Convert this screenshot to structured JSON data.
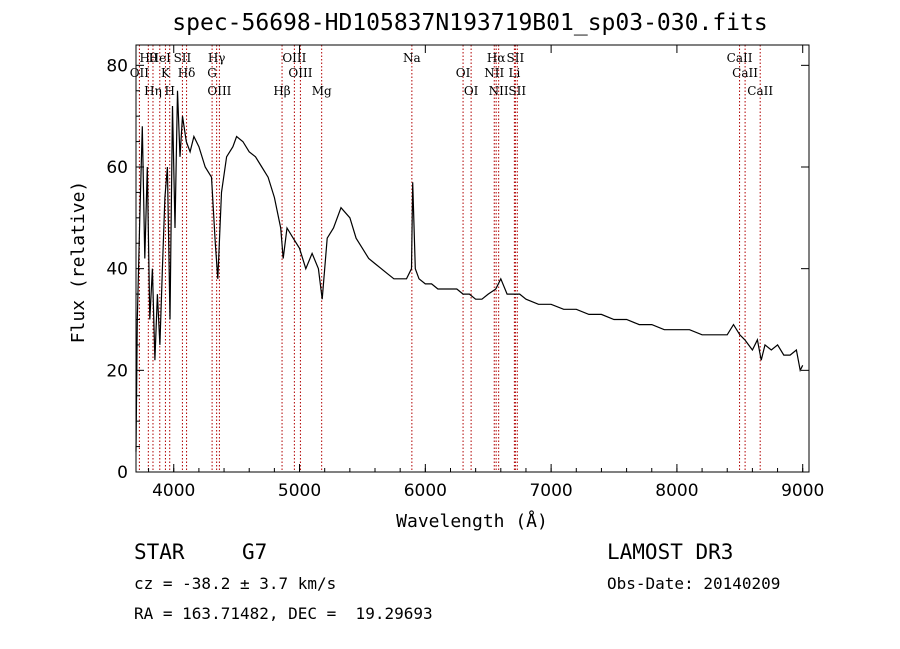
{
  "info": {
    "object_class": "STAR",
    "spectral_type": "G7",
    "survey": "LAMOST DR3",
    "redshift": "cz = -38.2 ± 3.7 km/s",
    "obs_date": "Obs-Date: 20140209",
    "coords": "RA = 163.71482, DEC =  19.29693"
  },
  "colors": {
    "spectrum": "#000000",
    "line_marker": "#b00000",
    "frame": "#000000"
  },
  "chart_data": {
    "type": "line",
    "title": "spec-56698-HD105837N193719B01_sp03-030.fits",
    "xlabel": "Wavelength (Å)",
    "ylabel": "Flux (relative)",
    "xlim": [
      3700,
      9050
    ],
    "ylim": [
      0,
      84
    ],
    "xticks": [
      4000,
      5000,
      6000,
      7000,
      8000,
      9000
    ],
    "yticks": [
      0,
      20,
      40,
      60,
      80
    ],
    "spectrum": {
      "x": [
        3700,
        3710,
        3730,
        3750,
        3770,
        3790,
        3810,
        3830,
        3850,
        3870,
        3890,
        3910,
        3930,
        3950,
        3970,
        3990,
        4010,
        4030,
        4050,
        4070,
        4100,
        4130,
        4160,
        4200,
        4250,
        4300,
        4330,
        4350,
        4380,
        4420,
        4470,
        4500,
        4550,
        4600,
        4650,
        4700,
        4750,
        4800,
        4850,
        4870,
        4900,
        4950,
        5000,
        5050,
        5100,
        5150,
        5180,
        5220,
        5270,
        5330,
        5400,
        5450,
        5500,
        5550,
        5600,
        5650,
        5700,
        5750,
        5800,
        5850,
        5890,
        5900,
        5920,
        5950,
        6000,
        6050,
        6100,
        6150,
        6200,
        6250,
        6300,
        6350,
        6400,
        6450,
        6500,
        6560,
        6600,
        6650,
        6700,
        6750,
        6800,
        6900,
        7000,
        7100,
        7200,
        7300,
        7400,
        7500,
        7600,
        7700,
        7800,
        7900,
        8000,
        8100,
        8200,
        8300,
        8400,
        8450,
        8500,
        8540,
        8570,
        8600,
        8640,
        8670,
        8700,
        8750,
        8800,
        8850,
        8900,
        8950,
        8980,
        9000
      ],
      "y": [
        4,
        30,
        50,
        68,
        42,
        60,
        30,
        40,
        22,
        35,
        25,
        40,
        54,
        60,
        30,
        72,
        48,
        75,
        62,
        70,
        65,
        63,
        66,
        64,
        60,
        58,
        45,
        38,
        55,
        62,
        64,
        66,
        65,
        63,
        62,
        60,
        58,
        54,
        48,
        42,
        48,
        46,
        44,
        40,
        43,
        40,
        34,
        46,
        48,
        52,
        50,
        46,
        44,
        42,
        41,
        40,
        39,
        38,
        38,
        38,
        40,
        57,
        40,
        38,
        37,
        37,
        36,
        36,
        36,
        36,
        35,
        35,
        34,
        34,
        35,
        36,
        38,
        35,
        35,
        35,
        34,
        33,
        33,
        32,
        32,
        31,
        31,
        30,
        30,
        29,
        29,
        28,
        28,
        28,
        27,
        27,
        27,
        29,
        27,
        26,
        25,
        24,
        26,
        22,
        25,
        24,
        25,
        23,
        23,
        24,
        20,
        21
      ]
    },
    "spectral_lines": [
      {
        "name": "Hθ",
        "wavelength": 3798
      },
      {
        "name": "OII",
        "wavelength": 3727
      },
      {
        "name": "Hη",
        "wavelength": 3835
      },
      {
        "name": "HeI",
        "wavelength": 3889
      },
      {
        "name": "K",
        "wavelength": 3934
      },
      {
        "name": "H",
        "wavelength": 3968
      },
      {
        "name": "SII",
        "wavelength": 4069
      },
      {
        "name": "Hδ",
        "wavelength": 4102
      },
      {
        "name": "OIII",
        "wavelength": 4363
      },
      {
        "name": "Hγ",
        "wavelength": 4341
      },
      {
        "name": "G",
        "wavelength": 4305
      },
      {
        "name": "Hβ",
        "wavelength": 4861
      },
      {
        "name": "OIII",
        "wavelength": 4959
      },
      {
        "name": "OIII",
        "wavelength": 5007
      },
      {
        "name": "Mg",
        "wavelength": 5176
      },
      {
        "name": "Na",
        "wavelength": 5893
      },
      {
        "name": "OI",
        "wavelength": 6300
      },
      {
        "name": "OI",
        "wavelength": 6364
      },
      {
        "name": "Hα",
        "wavelength": 6563
      },
      {
        "name": "NII",
        "wavelength": 6548
      },
      {
        "name": "NII",
        "wavelength": 6583
      },
      {
        "name": "SII",
        "wavelength": 6716
      },
      {
        "name": "Li",
        "wavelength": 6708
      },
      {
        "name": "SII",
        "wavelength": 6731
      },
      {
        "name": "CaII",
        "wavelength": 8498
      },
      {
        "name": "CaII",
        "wavelength": 8542
      },
      {
        "name": "CaII",
        "wavelength": 8662
      }
    ]
  }
}
